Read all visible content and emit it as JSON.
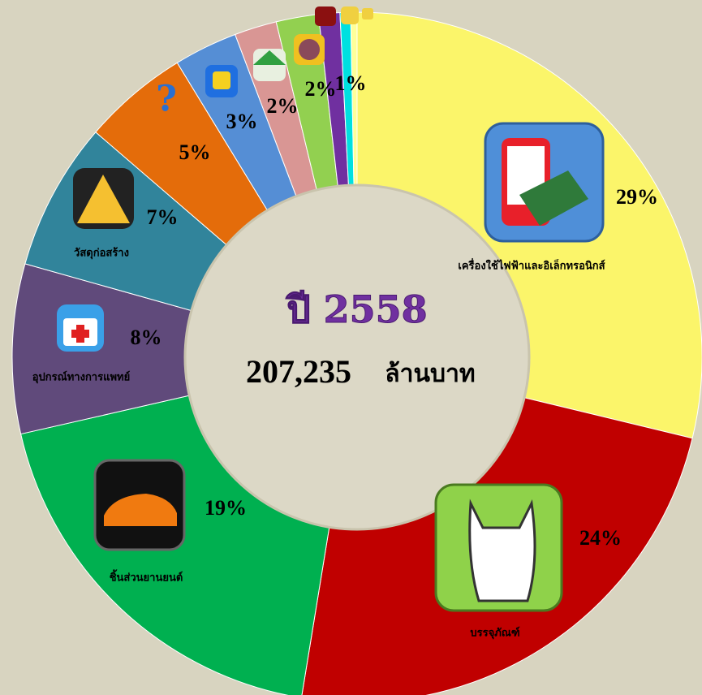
{
  "chart_data": {
    "type": "donut",
    "center_title": "ปี 2558",
    "center_value": "207,235",
    "center_unit": "ล้านบาท",
    "categories": [
      "เครื่องใช้ไฟฟ้าและอิเล็กทรอนิกส์",
      "บรรจุภัณฑ์",
      "ชิ้นส่วนยานยนต์",
      "อุปกรณ์ทางการแพทย์",
      "วัสดุก่อสร้าง",
      null,
      null,
      null,
      null,
      null,
      null,
      null
    ],
    "values": [
      29,
      24,
      19,
      8,
      7,
      5,
      3,
      2,
      2,
      1,
      0.5,
      0.3
    ],
    "value_labels": [
      "29%",
      "24%",
      "19%",
      "8%",
      "7%",
      "5%",
      "3%",
      "2%",
      "2%",
      "1%",
      null,
      null
    ],
    "colors": [
      "#fbf56a",
      "#c00000",
      "#00b050",
      "#604a7b",
      "#31849b",
      "#e46c0a",
      "#558ed5",
      "#d99694",
      "#92d050",
      "#7030a0",
      "#00e0e0",
      "#ffff99"
    ]
  }
}
